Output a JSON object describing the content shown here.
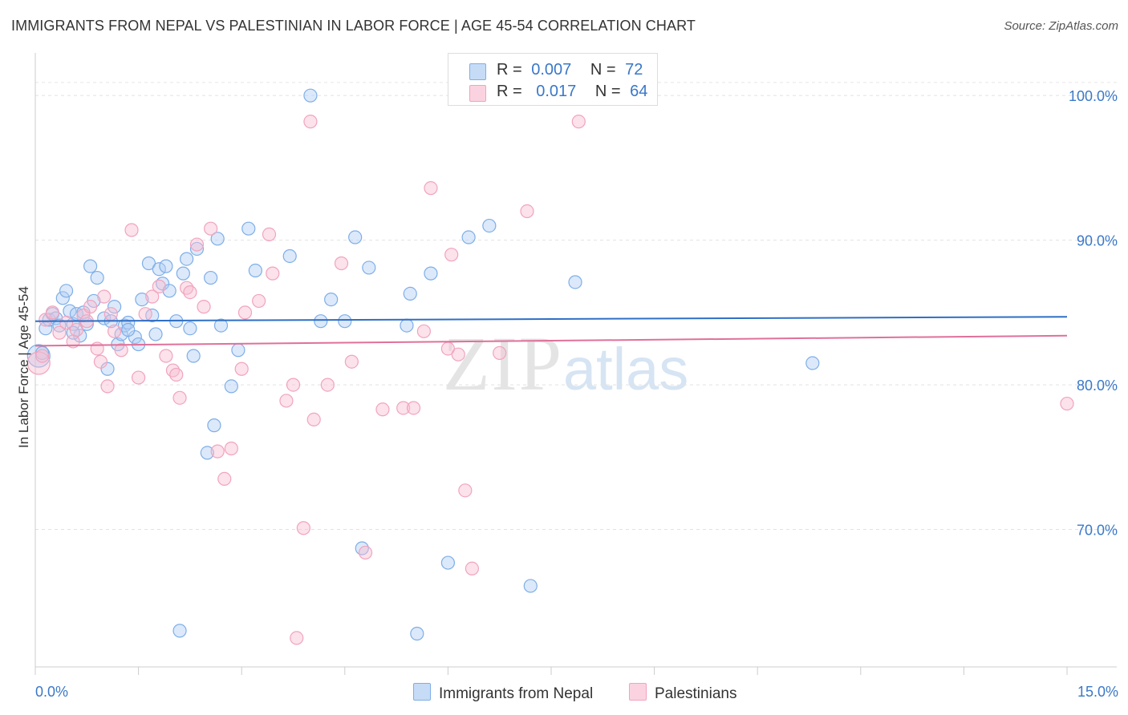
{
  "title": "IMMIGRANTS FROM NEPAL VS PALESTINIAN IN LABOR FORCE | AGE 45-54 CORRELATION CHART",
  "source": "Source: ZipAtlas.com",
  "watermark": {
    "zip": "ZIP",
    "atlas": "atlas"
  },
  "legend": {
    "rows": [
      {
        "r_label": "R =",
        "r_value": "0.007",
        "n_label": "N =",
        "n_value": "72",
        "color": "#7eaee8"
      },
      {
        "r_label": "R =",
        "r_value": "0.017",
        "n_label": "N =",
        "n_value": "64",
        "color": "#f2a3bd"
      }
    ]
  },
  "bottom_legend": {
    "series1": "Immigrants from Nepal",
    "series2": "Palestinians"
  },
  "chart_data": {
    "type": "scatter",
    "title": "IMMIGRANTS FROM NEPAL VS PALESTINIAN IN LABOR FORCE | AGE 45-54 CORRELATION CHART",
    "xlabel": "",
    "ylabel": "In Labor Force | Age 45-54",
    "xlim": [
      0,
      15
    ],
    "ylim": [
      60.5,
      103.5
    ],
    "x_tick_labels": [
      "0.0%",
      "15.0%"
    ],
    "y_ticks": [
      70,
      80,
      90,
      100
    ],
    "y_tick_labels": [
      "70.0%",
      "80.0%",
      "90.0%",
      "100.0%"
    ],
    "grid": true,
    "legend_position": "top-center",
    "series": [
      {
        "name": "Immigrants from Nepal",
        "color": "#7eaee8",
        "trend_color": "#2e6fc6",
        "trend": {
          "x": [
            0,
            15
          ],
          "y": [
            84.4,
            84.7
          ]
        },
        "points": [
          [
            0.05,
            82.0
          ],
          [
            0.1,
            82.2
          ],
          [
            0.15,
            83.9
          ],
          [
            0.2,
            84.5
          ],
          [
            0.25,
            84.9
          ],
          [
            0.3,
            84.6
          ],
          [
            0.35,
            84.1
          ],
          [
            0.4,
            86.0
          ],
          [
            0.45,
            86.5
          ],
          [
            0.5,
            85.1
          ],
          [
            0.55,
            84.2
          ],
          [
            0.6,
            84.9
          ],
          [
            0.65,
            83.4
          ],
          [
            0.7,
            85.0
          ],
          [
            0.75,
            84.2
          ],
          [
            0.8,
            88.2
          ],
          [
            0.85,
            85.8
          ],
          [
            0.9,
            87.4
          ],
          [
            1.0,
            84.6
          ],
          [
            1.05,
            81.1
          ],
          [
            1.1,
            84.4
          ],
          [
            1.15,
            85.4
          ],
          [
            1.2,
            82.8
          ],
          [
            1.25,
            83.5
          ],
          [
            1.3,
            84.1
          ],
          [
            1.35,
            84.3
          ],
          [
            1.45,
            83.3
          ],
          [
            1.5,
            82.8
          ],
          [
            1.55,
            85.9
          ],
          [
            1.65,
            88.4
          ],
          [
            1.7,
            84.8
          ],
          [
            1.75,
            83.5
          ],
          [
            1.8,
            88.0
          ],
          [
            1.85,
            87.0
          ],
          [
            1.9,
            88.2
          ],
          [
            1.95,
            86.5
          ],
          [
            2.05,
            84.4
          ],
          [
            2.15,
            87.7
          ],
          [
            2.2,
            88.7
          ],
          [
            2.25,
            83.9
          ],
          [
            2.3,
            82.0
          ],
          [
            2.35,
            89.4
          ],
          [
            2.5,
            75.3
          ],
          [
            2.55,
            87.4
          ],
          [
            2.6,
            77.2
          ],
          [
            2.65,
            90.1
          ],
          [
            2.7,
            84.1
          ],
          [
            2.85,
            79.9
          ],
          [
            2.95,
            82.4
          ],
          [
            3.1,
            90.8
          ],
          [
            3.2,
            87.9
          ],
          [
            3.7,
            88.9
          ],
          [
            4.0,
            100.0
          ],
          [
            4.15,
            84.4
          ],
          [
            4.3,
            85.9
          ],
          [
            4.5,
            84.4
          ],
          [
            4.65,
            90.2
          ],
          [
            4.75,
            68.7
          ],
          [
            4.85,
            88.1
          ],
          [
            5.4,
            84.1
          ],
          [
            5.45,
            86.3
          ],
          [
            5.55,
            62.8
          ],
          [
            5.75,
            87.7
          ],
          [
            6.0,
            67.7
          ],
          [
            6.3,
            90.2
          ],
          [
            6.6,
            91.0
          ],
          [
            7.2,
            66.1
          ],
          [
            7.85,
            87.1
          ],
          [
            11.3,
            81.5
          ],
          [
            2.1,
            63.0
          ],
          [
            0.55,
            83.6
          ],
          [
            1.35,
            83.8
          ]
        ]
      },
      {
        "name": "Palestinians",
        "color": "#f2a3bd",
        "trend_color": "#e0709a",
        "trend": {
          "x": [
            0,
            15
          ],
          "y": [
            82.7,
            83.4
          ]
        },
        "points": [
          [
            0.05,
            81.5
          ],
          [
            0.1,
            82.0
          ],
          [
            0.15,
            84.5
          ],
          [
            0.25,
            85.0
          ],
          [
            0.35,
            83.6
          ],
          [
            0.45,
            84.3
          ],
          [
            0.55,
            83.0
          ],
          [
            0.6,
            83.8
          ],
          [
            0.7,
            84.8
          ],
          [
            0.75,
            84.4
          ],
          [
            0.8,
            85.4
          ],
          [
            0.9,
            82.5
          ],
          [
            0.95,
            81.6
          ],
          [
            1.0,
            86.1
          ],
          [
            1.05,
            79.9
          ],
          [
            1.1,
            84.9
          ],
          [
            1.15,
            83.7
          ],
          [
            1.25,
            82.4
          ],
          [
            1.4,
            90.7
          ],
          [
            1.5,
            80.5
          ],
          [
            1.6,
            84.9
          ],
          [
            1.7,
            86.1
          ],
          [
            1.8,
            86.8
          ],
          [
            1.9,
            82.0
          ],
          [
            2.0,
            81.0
          ],
          [
            2.05,
            80.7
          ],
          [
            2.1,
            79.1
          ],
          [
            2.2,
            86.7
          ],
          [
            2.25,
            86.4
          ],
          [
            2.35,
            89.7
          ],
          [
            2.45,
            85.4
          ],
          [
            2.55,
            90.8
          ],
          [
            2.65,
            75.4
          ],
          [
            2.75,
            73.5
          ],
          [
            2.85,
            75.6
          ],
          [
            3.0,
            81.1
          ],
          [
            3.05,
            85.0
          ],
          [
            3.25,
            85.8
          ],
          [
            3.4,
            90.4
          ],
          [
            3.45,
            87.7
          ],
          [
            3.65,
            78.9
          ],
          [
            3.75,
            80.0
          ],
          [
            3.8,
            62.5
          ],
          [
            3.9,
            70.1
          ],
          [
            4.0,
            98.2
          ],
          [
            4.05,
            77.6
          ],
          [
            4.25,
            80.0
          ],
          [
            4.45,
            88.4
          ],
          [
            4.6,
            81.6
          ],
          [
            4.8,
            68.4
          ],
          [
            5.05,
            78.3
          ],
          [
            5.35,
            78.4
          ],
          [
            5.5,
            78.4
          ],
          [
            5.65,
            83.7
          ],
          [
            5.75,
            93.6
          ],
          [
            6.0,
            82.5
          ],
          [
            6.05,
            89.0
          ],
          [
            6.15,
            82.1
          ],
          [
            6.25,
            72.7
          ],
          [
            6.35,
            67.3
          ],
          [
            6.75,
            82.2
          ],
          [
            7.15,
            92.0
          ],
          [
            7.9,
            98.2
          ],
          [
            15.0,
            78.7
          ]
        ]
      }
    ]
  }
}
